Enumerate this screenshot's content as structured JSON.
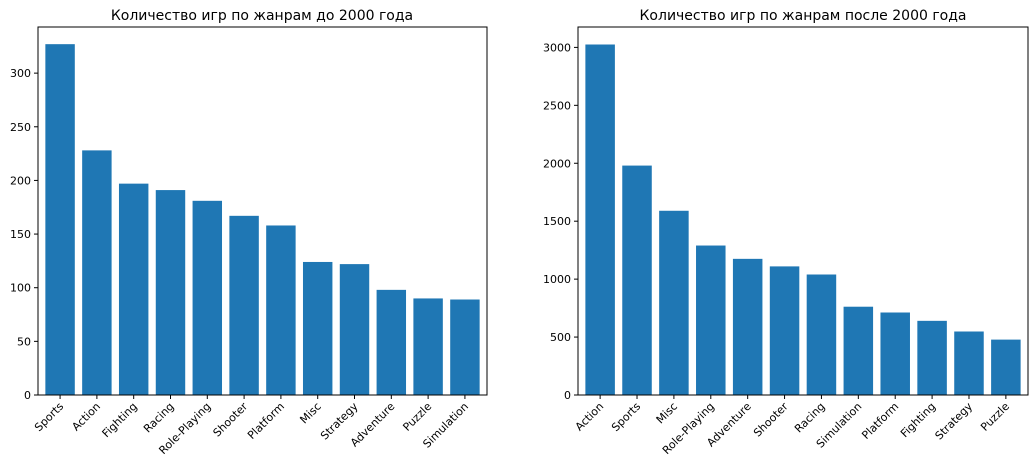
{
  "chart_data": [
    {
      "type": "bar",
      "title": "Количество игр по жанрам до 2000 года",
      "xlabel": "",
      "ylabel": "",
      "categories": [
        "Sports",
        "Action",
        "Fighting",
        "Racing",
        "Role-Playing",
        "Shooter",
        "Platform",
        "Misc",
        "Strategy",
        "Adventure",
        "Puzzle",
        "Simulation"
      ],
      "values": [
        327,
        228,
        197,
        191,
        181,
        167,
        158,
        124,
        122,
        98,
        90,
        89
      ],
      "ylim": [
        0,
        343
      ],
      "yticks": [
        0,
        50,
        100,
        150,
        200,
        250,
        300
      ],
      "color": "#1f77b4"
    },
    {
      "type": "bar",
      "title": "Количество игр по жанрам после 2000 года",
      "xlabel": "",
      "ylabel": "",
      "categories": [
        "Action",
        "Sports",
        "Misc",
        "Role-Playing",
        "Adventure",
        "Shooter",
        "Racing",
        "Simulation",
        "Platform",
        "Fighting",
        "Strategy",
        "Puzzle"
      ],
      "values": [
        3025,
        1980,
        1590,
        1290,
        1175,
        1110,
        1040,
        762,
        712,
        640,
        548,
        478
      ],
      "ylim": [
        0,
        3176
      ],
      "yticks": [
        0,
        500,
        1000,
        1500,
        2000,
        2500,
        3000
      ],
      "color": "#1f77b4"
    }
  ]
}
